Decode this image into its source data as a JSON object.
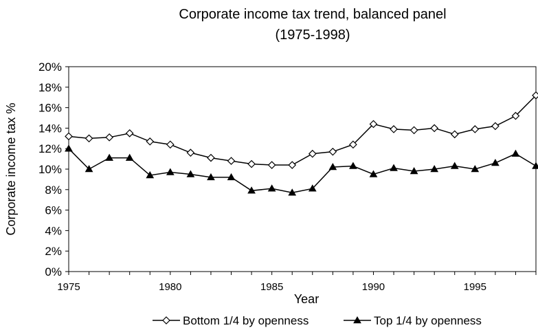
{
  "chart_data": {
    "type": "line",
    "title": "Corporate income tax trend, balanced panel",
    "subtitle": "(1975-1998)",
    "xlabel": "Year",
    "ylabel": "Corporate income tax %",
    "xlim": [
      1975,
      1998
    ],
    "ylim": [
      0,
      20
    ],
    "x_ticks": [
      1975,
      1980,
      1985,
      1990,
      1995
    ],
    "x_tick_labels": [
      "1975",
      "1980",
      "1985",
      "1990",
      "1995"
    ],
    "y_ticks": [
      0,
      2,
      4,
      6,
      8,
      10,
      12,
      14,
      16,
      18,
      20
    ],
    "y_tick_labels": [
      "0%",
      "2%",
      "4%",
      "6%",
      "8%",
      "10%",
      "12%",
      "14%",
      "16%",
      "18%",
      "20%"
    ],
    "grid": false,
    "legend_position": "bottom",
    "x": [
      1975,
      1976,
      1977,
      1978,
      1979,
      1980,
      1981,
      1982,
      1983,
      1984,
      1985,
      1986,
      1987,
      1988,
      1989,
      1990,
      1991,
      1992,
      1993,
      1994,
      1995,
      1996,
      1997,
      1998
    ],
    "series": [
      {
        "name": "Bottom 1/4 by openness",
        "marker": "diamond-open",
        "color": "#000000",
        "values": [
          13.2,
          13.0,
          13.1,
          13.5,
          12.7,
          12.4,
          11.6,
          11.1,
          10.8,
          10.5,
          10.4,
          10.4,
          11.5,
          11.7,
          12.4,
          14.4,
          13.9,
          13.8,
          14.0,
          13.4,
          13.9,
          14.2,
          15.2,
          17.2
        ]
      },
      {
        "name": "Top 1/4 by openness",
        "marker": "triangle-filled",
        "color": "#000000",
        "values": [
          12.0,
          10.0,
          11.1,
          11.1,
          9.4,
          9.7,
          9.5,
          9.2,
          9.2,
          7.9,
          8.1,
          7.7,
          8.1,
          10.2,
          10.3,
          9.5,
          10.1,
          9.8,
          10.0,
          10.3,
          10.0,
          10.6,
          11.5,
          10.3
        ]
      }
    ]
  }
}
